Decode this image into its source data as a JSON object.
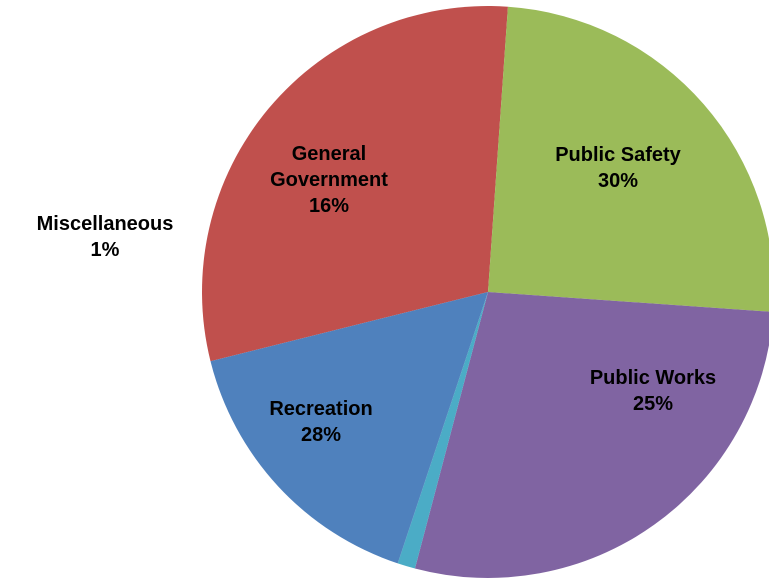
{
  "chart_data": {
    "type": "pie",
    "title": "",
    "slices": [
      {
        "label": "Public Safety",
        "label_lines": [
          "Public Safety"
        ],
        "percent_text": "30%",
        "value": 30,
        "color": "#c0504d"
      },
      {
        "label": "Public Works",
        "label_lines": [
          "Public Works"
        ],
        "percent_text": "25%",
        "value": 25,
        "color": "#9bbb59"
      },
      {
        "label": "Recreation",
        "label_lines": [
          "Recreation"
        ],
        "percent_text": "28%",
        "value": 28,
        "color": "#8064a2"
      },
      {
        "label": "Miscellaneous",
        "label_lines": [
          "Miscellaneous"
        ],
        "percent_text": "1%",
        "value": 1,
        "color": "#4bacc6"
      },
      {
        "label": "General Government",
        "label_lines": [
          "General",
          "Government"
        ],
        "percent_text": "16%",
        "value": 16,
        "color": "#4f81bd"
      }
    ],
    "legend": "none"
  }
}
